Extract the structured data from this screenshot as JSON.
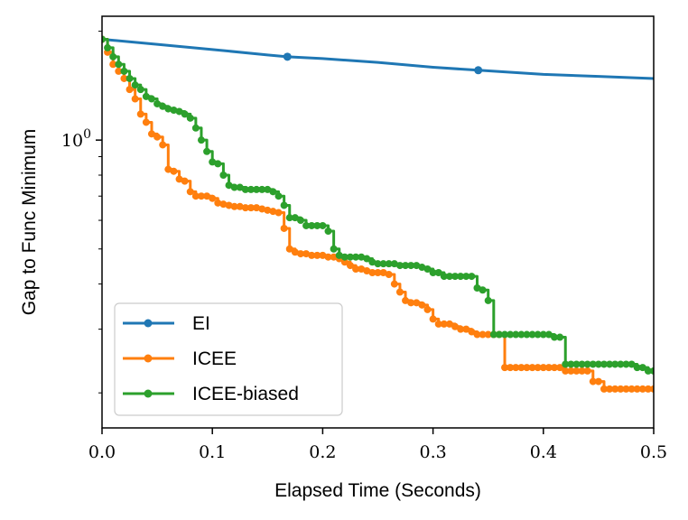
{
  "chart_data": {
    "type": "line",
    "xlabel": "Elapsed Time (Seconds)",
    "ylabel": "Gap to Func Minimum",
    "xlim": [
      0,
      0.5
    ],
    "ylim": [
      0.16,
      2.2
    ],
    "yscale": "log",
    "grid": false,
    "legend_position": "bottom-left",
    "x_ticks": [
      0.0,
      0.1,
      0.2,
      0.3,
      0.4,
      0.5
    ],
    "x_tick_labels": [
      "0.0",
      "0.1",
      "0.2",
      "0.3",
      "0.4",
      "0.5"
    ],
    "y_ticks": [
      1.0
    ],
    "y_tick_labels": [
      "10^0"
    ],
    "series": [
      {
        "name": "EI",
        "color": "#1f77b4",
        "marker_x": [
          0.168,
          0.341
        ],
        "x": [
          0.0,
          0.05,
          0.1,
          0.15,
          0.168,
          0.2,
          0.25,
          0.3,
          0.341,
          0.4,
          0.45,
          0.5
        ],
        "y": [
          1.9,
          1.84,
          1.78,
          1.72,
          1.7,
          1.68,
          1.64,
          1.59,
          1.56,
          1.52,
          1.5,
          1.48
        ]
      },
      {
        "name": "ICEE",
        "color": "#ff7f0e",
        "step": true,
        "x": [
          0.0,
          0.005,
          0.01,
          0.015,
          0.02,
          0.025,
          0.03,
          0.035,
          0.04,
          0.045,
          0.05,
          0.055,
          0.06,
          0.065,
          0.07,
          0.075,
          0.08,
          0.085,
          0.09,
          0.095,
          0.1,
          0.105,
          0.11,
          0.115,
          0.12,
          0.125,
          0.13,
          0.135,
          0.14,
          0.145,
          0.15,
          0.155,
          0.16,
          0.165,
          0.17,
          0.175,
          0.18,
          0.185,
          0.19,
          0.195,
          0.2,
          0.205,
          0.21,
          0.215,
          0.22,
          0.225,
          0.23,
          0.235,
          0.24,
          0.245,
          0.25,
          0.255,
          0.26,
          0.265,
          0.27,
          0.275,
          0.28,
          0.285,
          0.29,
          0.295,
          0.3,
          0.305,
          0.31,
          0.315,
          0.32,
          0.325,
          0.33,
          0.335,
          0.34,
          0.345,
          0.35,
          0.355,
          0.36,
          0.365,
          0.37,
          0.375,
          0.38,
          0.385,
          0.39,
          0.395,
          0.4,
          0.405,
          0.41,
          0.415,
          0.42,
          0.425,
          0.43,
          0.435,
          0.44,
          0.445,
          0.45,
          0.455,
          0.46,
          0.465,
          0.47,
          0.475,
          0.48,
          0.485,
          0.49,
          0.495,
          0.5
        ],
        "y": [
          1.9,
          1.75,
          1.62,
          1.55,
          1.48,
          1.38,
          1.3,
          1.18,
          1.12,
          1.04,
          1.02,
          0.97,
          0.83,
          0.82,
          0.78,
          0.77,
          0.72,
          0.7,
          0.7,
          0.7,
          0.69,
          0.67,
          0.665,
          0.66,
          0.655,
          0.655,
          0.65,
          0.65,
          0.65,
          0.645,
          0.64,
          0.635,
          0.63,
          0.57,
          0.5,
          0.49,
          0.485,
          0.485,
          0.48,
          0.48,
          0.48,
          0.475,
          0.475,
          0.47,
          0.46,
          0.45,
          0.44,
          0.44,
          0.435,
          0.43,
          0.43,
          0.43,
          0.425,
          0.4,
          0.38,
          0.36,
          0.355,
          0.355,
          0.35,
          0.34,
          0.32,
          0.31,
          0.31,
          0.31,
          0.305,
          0.3,
          0.3,
          0.295,
          0.29,
          0.29,
          0.29,
          0.29,
          0.29,
          0.235,
          0.235,
          0.235,
          0.235,
          0.235,
          0.235,
          0.235,
          0.235,
          0.235,
          0.235,
          0.235,
          0.23,
          0.23,
          0.23,
          0.23,
          0.23,
          0.215,
          0.215,
          0.205,
          0.205,
          0.205,
          0.205,
          0.205,
          0.205,
          0.205,
          0.205,
          0.205,
          0.205
        ]
      },
      {
        "name": "ICEE-biased",
        "color": "#2ca02c",
        "step": true,
        "x": [
          0.0,
          0.005,
          0.01,
          0.015,
          0.02,
          0.025,
          0.03,
          0.035,
          0.04,
          0.045,
          0.05,
          0.055,
          0.06,
          0.065,
          0.07,
          0.075,
          0.08,
          0.085,
          0.09,
          0.095,
          0.1,
          0.105,
          0.11,
          0.115,
          0.12,
          0.125,
          0.13,
          0.135,
          0.14,
          0.145,
          0.15,
          0.155,
          0.16,
          0.165,
          0.17,
          0.175,
          0.18,
          0.185,
          0.19,
          0.195,
          0.2,
          0.205,
          0.21,
          0.215,
          0.22,
          0.225,
          0.23,
          0.235,
          0.24,
          0.245,
          0.25,
          0.255,
          0.26,
          0.265,
          0.27,
          0.275,
          0.28,
          0.285,
          0.29,
          0.295,
          0.3,
          0.305,
          0.31,
          0.315,
          0.32,
          0.325,
          0.33,
          0.335,
          0.34,
          0.345,
          0.35,
          0.355,
          0.36,
          0.365,
          0.37,
          0.375,
          0.38,
          0.385,
          0.39,
          0.395,
          0.4,
          0.405,
          0.41,
          0.415,
          0.42,
          0.425,
          0.43,
          0.435,
          0.44,
          0.445,
          0.45,
          0.455,
          0.46,
          0.465,
          0.47,
          0.475,
          0.48,
          0.485,
          0.49,
          0.495,
          0.5
        ],
        "y": [
          1.9,
          1.8,
          1.7,
          1.62,
          1.55,
          1.48,
          1.42,
          1.38,
          1.32,
          1.3,
          1.26,
          1.24,
          1.22,
          1.21,
          1.2,
          1.18,
          1.15,
          1.08,
          1.0,
          0.93,
          0.87,
          0.86,
          0.8,
          0.75,
          0.74,
          0.74,
          0.73,
          0.73,
          0.73,
          0.73,
          0.73,
          0.72,
          0.7,
          0.66,
          0.61,
          0.61,
          0.6,
          0.58,
          0.58,
          0.58,
          0.58,
          0.56,
          0.5,
          0.48,
          0.475,
          0.475,
          0.475,
          0.475,
          0.47,
          0.46,
          0.455,
          0.455,
          0.455,
          0.455,
          0.45,
          0.45,
          0.45,
          0.45,
          0.445,
          0.44,
          0.43,
          0.43,
          0.42,
          0.42,
          0.42,
          0.42,
          0.42,
          0.42,
          0.39,
          0.385,
          0.36,
          0.29,
          0.29,
          0.29,
          0.29,
          0.29,
          0.29,
          0.29,
          0.29,
          0.29,
          0.29,
          0.29,
          0.285,
          0.285,
          0.24,
          0.24,
          0.24,
          0.24,
          0.24,
          0.24,
          0.24,
          0.24,
          0.24,
          0.24,
          0.24,
          0.24,
          0.24,
          0.235,
          0.235,
          0.23,
          0.23
        ]
      }
    ]
  }
}
